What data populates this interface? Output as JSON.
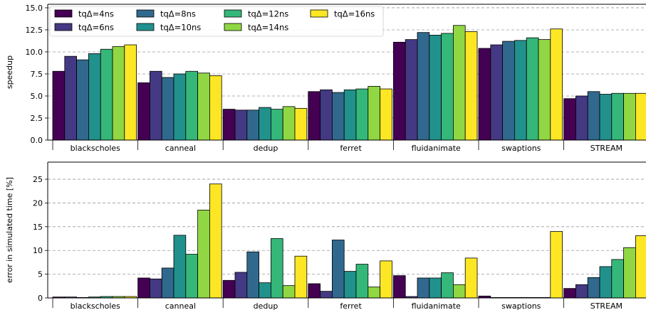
{
  "chart_data": [
    {
      "type": "bar",
      "ylabel": "speedup",
      "xlabel": "",
      "ylim": [
        0,
        15.4
      ],
      "yticks": [
        0.0,
        2.5,
        5.0,
        7.5,
        10.0,
        12.5,
        15.0
      ],
      "ytick_labels": [
        "0.0",
        "2.5",
        "5.0",
        "7.5",
        "10.0",
        "12.5",
        "15.0"
      ],
      "grid": "horizontal dashed",
      "categories": [
        "blackscholes",
        "canneal",
        "dedup",
        "ferret",
        "fluidanimate",
        "swaptions",
        "STREAM"
      ],
      "legend_position": "top-left",
      "series": [
        {
          "name": "tqΔ=4ns",
          "color": "#440154",
          "values": [
            7.8,
            6.5,
            3.5,
            5.5,
            11.1,
            10.4,
            4.7
          ]
        },
        {
          "name": "tqΔ=6ns",
          "color": "#443983",
          "values": [
            9.5,
            7.8,
            3.4,
            5.7,
            11.4,
            10.8,
            5.0
          ]
        },
        {
          "name": "tqΔ=8ns",
          "color": "#31688e",
          "values": [
            9.1,
            7.1,
            3.4,
            5.4,
            12.2,
            11.2,
            5.5
          ]
        },
        {
          "name": "tqΔ=10ns",
          "color": "#21918c",
          "values": [
            9.8,
            7.5,
            3.7,
            5.7,
            11.9,
            11.3,
            5.2
          ]
        },
        {
          "name": "tqΔ=12ns",
          "color": "#35b779",
          "values": [
            10.3,
            7.8,
            3.5,
            5.8,
            12.1,
            11.6,
            5.3
          ]
        },
        {
          "name": "tqΔ=14ns",
          "color": "#90d743",
          "values": [
            10.6,
            7.6,
            3.8,
            6.1,
            13.0,
            11.4,
            5.3
          ]
        },
        {
          "name": "tqΔ=16ns",
          "color": "#fde725",
          "values": [
            10.8,
            7.3,
            3.6,
            5.8,
            12.3,
            12.6,
            5.3
          ]
        }
      ]
    },
    {
      "type": "bar",
      "ylabel": "error in simulated time [%]",
      "xlabel": "",
      "ylim": [
        0,
        28.6
      ],
      "yticks": [
        0,
        5,
        10,
        15,
        20,
        25
      ],
      "ytick_labels": [
        "0",
        "5",
        "10",
        "15",
        "20",
        "25"
      ],
      "grid": "horizontal dashed",
      "categories": [
        "blackscholes",
        "canneal",
        "dedup",
        "ferret",
        "fluidanimate",
        "swaptions",
        "STREAM"
      ],
      "series": [
        {
          "name": "tqΔ=4ns",
          "color": "#440154",
          "values": [
            0.2,
            4.2,
            3.7,
            3.0,
            4.7,
            0.4,
            2.0
          ]
        },
        {
          "name": "tqΔ=6ns",
          "color": "#443983",
          "values": [
            0.2,
            4.0,
            5.4,
            1.4,
            0.3,
            0.1,
            2.8
          ]
        },
        {
          "name": "tqΔ=8ns",
          "color": "#31688e",
          "values": [
            0.1,
            6.3,
            9.7,
            12.2,
            4.2,
            0.1,
            4.3
          ]
        },
        {
          "name": "tqΔ=10ns",
          "color": "#21918c",
          "values": [
            0.2,
            13.2,
            3.2,
            5.6,
            4.2,
            0.1,
            6.6
          ]
        },
        {
          "name": "tqΔ=12ns",
          "color": "#35b779",
          "values": [
            0.3,
            9.2,
            12.5,
            7.1,
            5.3,
            0.1,
            8.1
          ]
        },
        {
          "name": "tqΔ=14ns",
          "color": "#90d743",
          "values": [
            0.3,
            18.5,
            2.6,
            2.3,
            2.8,
            0.1,
            10.6
          ]
        },
        {
          "name": "tqΔ=16ns",
          "color": "#fde725",
          "values": [
            0.3,
            24.0,
            8.8,
            7.8,
            8.4,
            14.0,
            13.1
          ]
        }
      ]
    }
  ]
}
